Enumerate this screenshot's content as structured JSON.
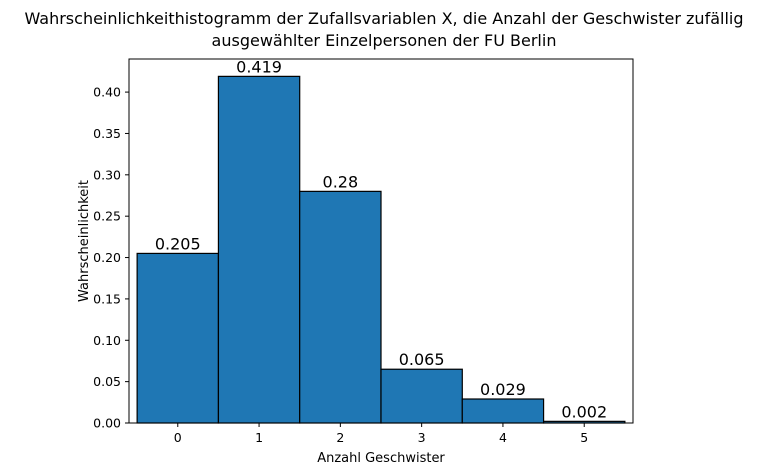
{
  "chart_data": {
    "type": "bar",
    "title_lines": [
      "Wahrscheinlichkeithistogramm der Zufallsvariablen X, die Anzahl der Geschwister zufällig",
      "ausgewählter Einzelpersonen der FU Berlin"
    ],
    "xlabel": "Anzahl Geschwister",
    "ylabel": "Wahrscheinlichkeit",
    "categories": [
      "0",
      "1",
      "2",
      "3",
      "4",
      "5"
    ],
    "x": [
      0,
      1,
      2,
      3,
      4,
      5
    ],
    "values": [
      0.205,
      0.419,
      0.28,
      0.065,
      0.029,
      0.002
    ],
    "value_labels": [
      "0.205",
      "0.419",
      "0.28",
      "0.065",
      "0.029",
      "0.002"
    ],
    "bar_width": 1,
    "xlim": [
      -0.6,
      5.6
    ],
    "ylim": [
      0,
      0.44
    ],
    "yticks": [
      0.0,
      0.05,
      0.1,
      0.15,
      0.2,
      0.25,
      0.3,
      0.35,
      0.4
    ],
    "ytick_labels": [
      "0.00",
      "0.05",
      "0.10",
      "0.15",
      "0.20",
      "0.25",
      "0.30",
      "0.35",
      "0.40"
    ],
    "grid": false,
    "bar_color": "#1f77b4",
    "edge_color": "#000000"
  }
}
